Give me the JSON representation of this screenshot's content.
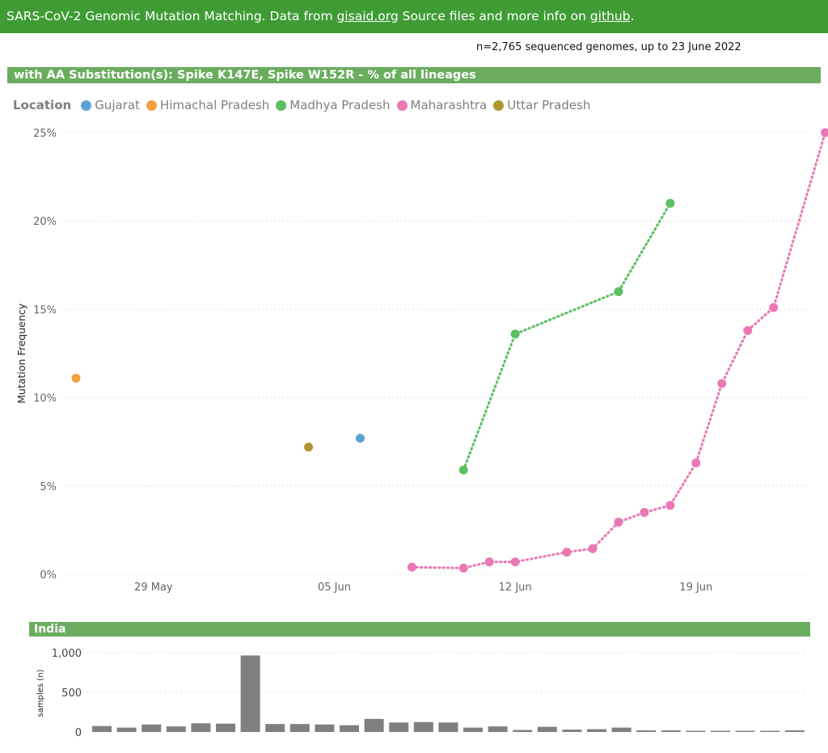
{
  "header": {
    "prefix": "SARS-CoV-2 Genomic Mutation Matching. Data from ",
    "link1": "gisaid.org",
    "middle": " Source files and more info on ",
    "link2": "github",
    "suffix": "."
  },
  "genomes_note": "n=2,765 sequenced genomes, up to 23 June 2022",
  "section_title": "with AA Substitution(s): Spike K147E, Spike W152R - % of all lineages",
  "legend": {
    "title": "Location",
    "items": [
      {
        "name": "Gujarat",
        "color": "#5aa3d8"
      },
      {
        "name": "Himachal Pradesh",
        "color": "#f5a03c"
      },
      {
        "name": "Madhya Pradesh",
        "color": "#5cbf60"
      },
      {
        "name": "Maharashtra",
        "color": "#ea78b4"
      },
      {
        "name": "Uttar Pradesh",
        "color": "#b09530"
      }
    ]
  },
  "india_title": "India",
  "chart_data": [
    {
      "type": "line",
      "title": "with AA Substitution(s): Spike K147E, Spike W152R - % of all lineages",
      "ylabel": "Mutation Frequency",
      "xlabel": "",
      "ylim": [
        0,
        25
      ],
      "yticks": [
        "0%",
        "5%",
        "10%",
        "15%",
        "20%",
        "25%"
      ],
      "xticks": [
        "29 May",
        "05 Jun",
        "12 Jun",
        "19 Jun"
      ],
      "x_range": [
        "2022-05-26",
        "2022-06-22"
      ],
      "grid": true,
      "legend_position": "top-left",
      "series": [
        {
          "name": "Gujarat",
          "color": "#5aa3d8",
          "points": [
            [
              "2022-06-06",
              7.7
            ]
          ]
        },
        {
          "name": "Himachal Pradesh",
          "color": "#f5a03c",
          "points": [
            [
              "2022-05-26",
              11.1
            ]
          ]
        },
        {
          "name": "Madhya Pradesh",
          "color": "#5cbf60",
          "points": [
            [
              "2022-06-10",
              5.9
            ],
            [
              "2022-06-12",
              13.6
            ],
            [
              "2022-06-16",
              16.0
            ],
            [
              "2022-06-18",
              21.0
            ]
          ]
        },
        {
          "name": "Maharashtra",
          "color": "#ea78b4",
          "points": [
            [
              "2022-06-08",
              0.4
            ],
            [
              "2022-06-10",
              0.35
            ],
            [
              "2022-06-11",
              0.7
            ],
            [
              "2022-06-12",
              0.7
            ],
            [
              "2022-06-14",
              1.25
            ],
            [
              "2022-06-15",
              1.45
            ],
            [
              "2022-06-16",
              2.95
            ],
            [
              "2022-06-17",
              3.5
            ],
            [
              "2022-06-18",
              3.9
            ],
            [
              "2022-06-19",
              6.3
            ],
            [
              "2022-06-20",
              10.8
            ],
            [
              "2022-06-21",
              13.8
            ],
            [
              "2022-06-22",
              15.1
            ],
            [
              "2022-06-24",
              25.0
            ]
          ]
        },
        {
          "name": "Uttar Pradesh",
          "color": "#b09530",
          "points": [
            [
              "2022-06-04",
              7.2
            ]
          ]
        }
      ]
    },
    {
      "type": "bar",
      "title": "India",
      "ylabel": "samples (n)",
      "xlabel": "",
      "ylim": [
        0,
        1000
      ],
      "yticks": [
        "0",
        "500",
        "1,000"
      ],
      "color": "#7f7f7f",
      "categories": [
        "2022-05-26",
        "2022-05-27",
        "2022-05-28",
        "2022-05-29",
        "2022-05-30",
        "2022-05-31",
        "2022-06-01",
        "2022-06-02",
        "2022-06-03",
        "2022-06-04",
        "2022-06-05",
        "2022-06-06",
        "2022-06-07",
        "2022-06-08",
        "2022-06-09",
        "2022-06-10",
        "2022-06-11",
        "2022-06-12",
        "2022-06-13",
        "2022-06-14",
        "2022-06-15",
        "2022-06-16",
        "2022-06-17",
        "2022-06-18",
        "2022-06-19",
        "2022-06-20",
        "2022-06-21",
        "2022-06-22",
        "2022-06-23"
      ],
      "values": [
        75,
        55,
        95,
        70,
        110,
        105,
        965,
        100,
        100,
        95,
        85,
        165,
        120,
        125,
        120,
        55,
        70,
        25,
        65,
        30,
        35,
        55,
        20,
        20,
        15,
        15,
        15,
        15,
        20
      ]
    }
  ]
}
